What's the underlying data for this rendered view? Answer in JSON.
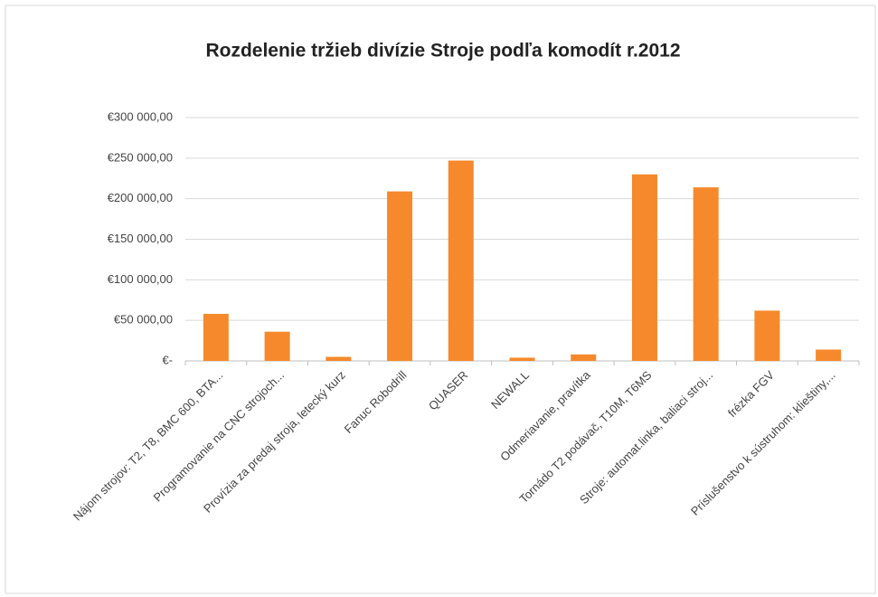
{
  "chart_data": {
    "type": "bar",
    "title": "Rozdelenie tržieb divízie Stroje podľa komodít r.2012",
    "categories": [
      "Nájom strojov: T2, T8, BMC 600, BTA...",
      "Programovanie na CNC strojoch...",
      "Provízia za predaj stroja, letecký kurz",
      "Fanuc Robodrill",
      "QUASER",
      "NEWALL",
      "Odmeriavanie, pravítka",
      "Tornádo T2 podávač, T10M, T6MS",
      "Stroje: automat.linka, baliaci stroj...",
      "frézka FGV",
      "Príslušenstvo k sústruhom: klieštiny,..."
    ],
    "values": [
      58000,
      36000,
      5000,
      209000,
      247000,
      4000,
      8000,
      230000,
      214000,
      62000,
      14000
    ],
    "color": "#f5892b",
    "ylim": [
      0,
      300000
    ],
    "yticks": [
      {
        "value": 0,
        "label": "€-"
      },
      {
        "value": 50000,
        "label": "€50 000,00"
      },
      {
        "value": 100000,
        "label": "€100 000,00"
      },
      {
        "value": 150000,
        "label": "€150 000,00"
      },
      {
        "value": 200000,
        "label": "€200 000,00"
      },
      {
        "value": 250000,
        "label": "€250 000,00"
      },
      {
        "value": 300000,
        "label": "€300 000,00"
      }
    ],
    "grid": true
  }
}
